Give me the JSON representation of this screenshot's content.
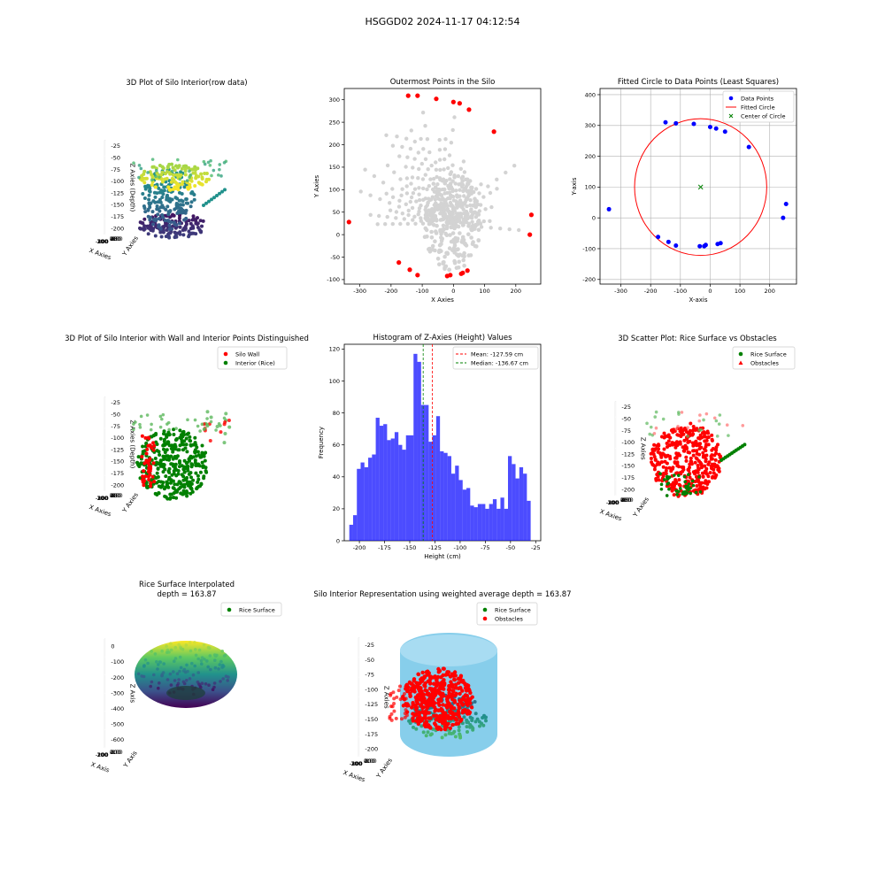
{
  "suptitle": "HSGGD02 2024-11-17 04:12:54",
  "chart_data": [
    {
      "type": "scatter",
      "projection": "3d",
      "title": "3D Plot of Silo Interior(row data)",
      "xlabel": "X Axies",
      "ylabel": "Y Axies",
      "zlabel": "Z Axies (Depth)",
      "xticks": [
        "-300",
        "-200",
        "-100",
        "0",
        "100",
        "200"
      ],
      "yticks": [
        "-100",
        "-50",
        "0",
        "50",
        "100",
        "150",
        "200",
        "250",
        "300"
      ],
      "zticks": [
        "-25",
        "-50",
        "-75",
        "-100",
        "-125",
        "-150",
        "-175",
        "-200"
      ],
      "colormap": "viridis",
      "grid": true
    },
    {
      "type": "scatter",
      "title": "Outermost Points in the Silo",
      "xlabel": "X Axies",
      "ylabel": "Y Axies",
      "xlim": [
        -350,
        280
      ],
      "ylim": [
        -110,
        325
      ],
      "xticks": [
        -300,
        -200,
        -100,
        0,
        100,
        200
      ],
      "yticks": [
        -100,
        -50,
        0,
        50,
        100,
        150,
        200,
        250,
        300
      ],
      "series": [
        {
          "color": "#d3d3d3",
          "role": "all points"
        },
        {
          "color": "#ff0000",
          "role": "outermost points",
          "points": [
            [
              -335,
              28
            ],
            [
              -145,
              309
            ],
            [
              -115,
              309
            ],
            [
              -55,
              302
            ],
            [
              0,
              295
            ],
            [
              20,
              292
            ],
            [
              50,
              278
            ],
            [
              130,
              229
            ],
            [
              250,
              44
            ],
            [
              245,
              0
            ],
            [
              -175,
              -62
            ],
            [
              -140,
              -78
            ],
            [
              -115,
              -90
            ],
            [
              -20,
              -92
            ],
            [
              -10,
              -90
            ],
            [
              25,
              -87
            ],
            [
              30,
              -85
            ],
            [
              45,
              -80
            ]
          ]
        }
      ],
      "grid": false
    },
    {
      "type": "scatter",
      "title": "Fitted Circle to Data Points (Least Squares)",
      "xlabel": "X-axis",
      "ylabel": "Y-axis",
      "xlim": [
        -370,
        290
      ],
      "ylim": [
        -215,
        420
      ],
      "xticks": [
        -300,
        -200,
        -100,
        0,
        100,
        200
      ],
      "yticks": [
        -200,
        -100,
        0,
        100,
        200,
        300,
        400
      ],
      "legend": [
        "Data Points",
        "Fitted Circle",
        "Center of Circle"
      ],
      "legend_position": "top-right",
      "data_points": [
        [
          -340,
          28
        ],
        [
          -150,
          310
        ],
        [
          -115,
          307
        ],
        [
          -55,
          305
        ],
        [
          0,
          295
        ],
        [
          20,
          290
        ],
        [
          50,
          280
        ],
        [
          130,
          230
        ],
        [
          255,
          45
        ],
        [
          245,
          0
        ],
        [
          -175,
          -62
        ],
        [
          -140,
          -78
        ],
        [
          -115,
          -90
        ],
        [
          -35,
          -92
        ],
        [
          -20,
          -92
        ],
        [
          -15,
          -88
        ],
        [
          25,
          -85
        ],
        [
          35,
          -82
        ]
      ],
      "circle": {
        "center": [
          -32,
          100
        ],
        "radius": 222
      },
      "grid": true
    },
    {
      "type": "scatter",
      "projection": "3d",
      "title": "3D Plot of Silo Interior with Wall and Interior Points Distinguished",
      "xlabel": "X Axies",
      "ylabel": "Y Axies",
      "zlabel": "Z Axies (Depth)",
      "legend": [
        "Silo Wall",
        "Interior (Rice)"
      ],
      "legend_position": "top-right",
      "xticks": [
        "-300",
        "-200",
        "-100",
        "0",
        "100",
        "200"
      ],
      "yticks": [
        "-100",
        "-50",
        "0",
        "50",
        "100",
        "150",
        "200",
        "250",
        "300"
      ],
      "zticks": [
        "-25",
        "-50",
        "-75",
        "-100",
        "-125",
        "-150",
        "-175",
        "-200"
      ],
      "grid": true
    },
    {
      "type": "bar",
      "title": "Histogram of Z-Axies (Height) Values",
      "xlabel": "Height (cm)",
      "ylabel": "Frequency",
      "xlim": [
        -215,
        -20
      ],
      "ylim": [
        0,
        123
      ],
      "xticks": [
        -200,
        -175,
        -150,
        -125,
        -100,
        -75,
        -50,
        -25
      ],
      "yticks": [
        0,
        20,
        40,
        60,
        80,
        100,
        120
      ],
      "bin_start": -210,
      "bin_width": 3.75,
      "values": [
        10,
        16,
        45,
        49,
        46,
        52,
        54,
        77,
        72,
        73,
        63,
        64,
        68,
        60,
        57,
        66,
        66,
        117,
        112,
        85,
        85,
        62,
        66,
        78,
        56,
        55,
        53,
        42,
        47,
        38,
        32,
        33,
        22,
        21,
        23,
        23,
        20,
        23,
        26,
        20,
        27,
        20,
        53,
        48,
        39,
        46,
        42,
        25
      ],
      "mean": -127.59,
      "median": -136.67,
      "legend": [
        "Mean: -127.59 cm",
        "Median: -136.67 cm"
      ],
      "legend_position": "top-right"
    },
    {
      "type": "scatter",
      "projection": "3d",
      "title": "3D Scatter Plot: Rice Surface vs Obstacles",
      "xlabel": "X Axies",
      "ylabel": "Y Axies",
      "zlabel": "Z Axies",
      "legend": [
        "Rice Surface",
        "Obstacles"
      ],
      "legend_position": "top-right",
      "xticks": [
        "-300",
        "-200",
        "-100",
        "0",
        "100",
        "200"
      ],
      "yticks": [
        "-100",
        "-50",
        "0",
        "50",
        "100",
        "150",
        "200",
        "250",
        "300"
      ],
      "zticks": [
        "-25",
        "-50",
        "-75",
        "-100",
        "-125",
        "-150",
        "-175",
        "-200"
      ],
      "grid": true
    },
    {
      "type": "scatter",
      "projection": "3d",
      "title": "Rice Surface Interpolated",
      "subtitle": "depth = 163.87",
      "xlabel": "X Axis",
      "ylabel": "Y Axis",
      "zlabel": "Z Axis",
      "legend": [
        "Rice Surface"
      ],
      "legend_position": "top-right",
      "xticks": [
        "-200",
        "-100",
        "0",
        "100",
        "200"
      ],
      "yticks": [
        "-100",
        "0",
        "100",
        "200",
        "300"
      ],
      "zticks": [
        "0",
        "-100",
        "-200",
        "-300",
        "-400",
        "-500",
        "-600"
      ],
      "grid": true
    },
    {
      "type": "scatter",
      "projection": "3d",
      "title": "Silo Interior Representation using weighted average depth = 163.87",
      "xlabel": "X Axies",
      "ylabel": "Y Axies",
      "zlabel": "Z Axies",
      "legend": [
        "Rice Surface",
        "Obstacles"
      ],
      "legend_position": "top-center",
      "xticks": [
        "-300",
        "-200",
        "-100",
        "0",
        "100",
        "200"
      ],
      "yticks": [
        "-100",
        "0",
        "100",
        "200",
        "300"
      ],
      "zticks": [
        "-25",
        "-50",
        "-75",
        "-100",
        "-125",
        "-150",
        "-175",
        "-200"
      ],
      "grid": true
    }
  ]
}
